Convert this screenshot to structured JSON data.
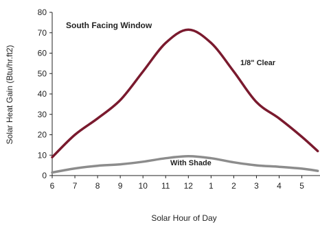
{
  "chart_data": {
    "type": "line",
    "title": "South Facing Window",
    "xlabel": "Solar Hour of Day",
    "ylabel": "Solar Heat Gain (Btu/hr.ft2)",
    "ylim": [
      0,
      80
    ],
    "yticks": [
      "0",
      "10",
      "20",
      "30",
      "40",
      "50",
      "60",
      "70",
      "80"
    ],
    "x_tick_labels": [
      "6",
      "7",
      "8",
      "9",
      "10",
      "11",
      "12",
      "1",
      "2",
      "3",
      "4",
      "5"
    ],
    "grid": false,
    "x": [
      6,
      7,
      8,
      9,
      10,
      11,
      12,
      13,
      14,
      15,
      16,
      17,
      17.7
    ],
    "series": [
      {
        "name": "1/8\" Clear",
        "color": "#7a1a2e",
        "values": [
          9,
          20,
          28,
          37,
          51,
          65,
          71.5,
          65,
          51,
          36,
          28,
          19,
          12
        ]
      },
      {
        "name": "With Shade",
        "color": "#8c8c8c",
        "values": [
          1.5,
          3.5,
          4.8,
          5.5,
          6.8,
          8.5,
          9.5,
          8.5,
          6.5,
          5,
          4.3,
          3.4,
          2.3
        ]
      }
    ]
  }
}
